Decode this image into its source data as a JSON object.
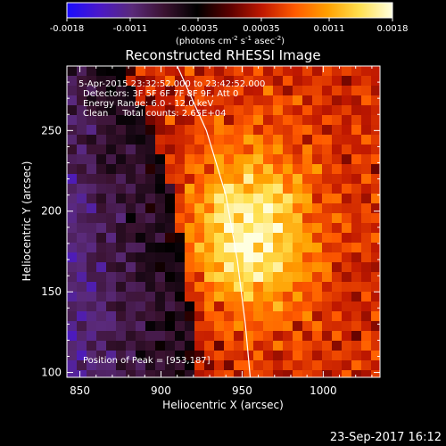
{
  "chart_data": {
    "type": "heatmap",
    "title": "Reconstructed RHESSI Image",
    "colorbar": {
      "ticks": [
        "-0.0018",
        "-0.0011",
        "-0.00035",
        "0.00035",
        "0.0011",
        "0.0018"
      ],
      "range": [
        -0.0018,
        0.0018
      ],
      "unit_label": "(photons cm",
      "unit_sup1": "-2",
      "unit_mid1": " s",
      "unit_sup2": "-1",
      "unit_mid2": " asec",
      "unit_sup3": "-2",
      "unit_end": ")"
    },
    "info": {
      "time_range": "5-Apr-2015 23:32:52.000 to 23:42:52.000",
      "detectors": "Detectors: 3F 5F 6F 7F 8F 9F, Att 0",
      "energy": "Energy Range: 6.0 - 12.0 keV",
      "clean": "Clean     Total counts: 2.65E+04",
      "peak": "Position of Peak = [953,187]"
    },
    "xlabel": "Heliocentric X (arcsec)",
    "ylabel": "Heliocentric Y (arcsec)",
    "x_ticks": [
      850,
      900,
      950,
      1000
    ],
    "y_ticks": [
      100,
      150,
      200,
      250
    ],
    "xlim": [
      842,
      1035
    ],
    "ylim": [
      97,
      290
    ],
    "peak": [
      953,
      187
    ],
    "limb_points": [
      [
        910,
        290
      ],
      [
        928,
        250
      ],
      [
        940,
        210
      ],
      [
        947,
        170
      ],
      [
        952,
        130
      ],
      [
        955,
        97
      ]
    ],
    "colormap": [
      "#1a0cff",
      "#4a18c8",
      "#5a2a7a",
      "#3a1230",
      "#000000",
      "#5a0000",
      "#c01800",
      "#ff5a00",
      "#ffa000",
      "#ffe050",
      "#ffffe0"
    ]
  },
  "footer": {
    "timestamp": "23-Sep-2017 16:12"
  }
}
